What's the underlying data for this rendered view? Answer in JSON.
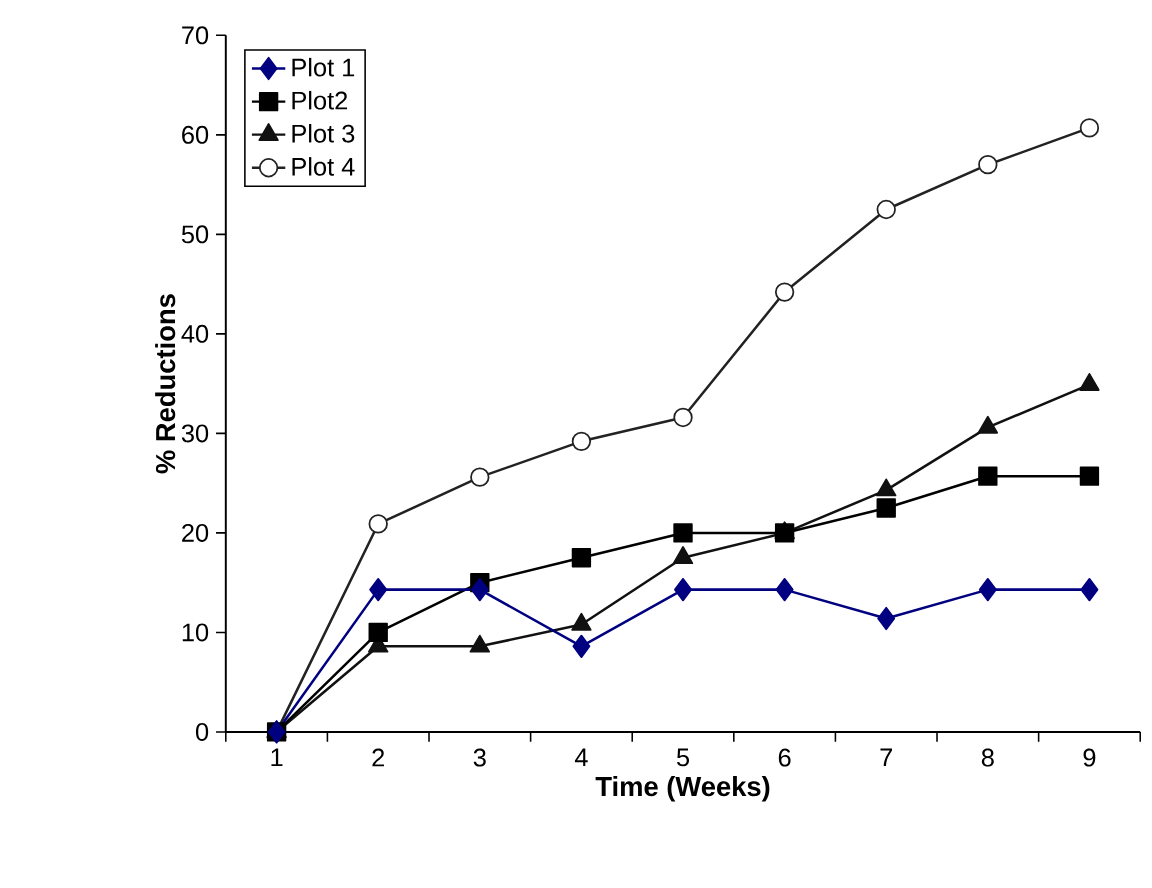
{
  "chart_data": {
    "type": "line",
    "xlabel": "Time (Weeks)",
    "ylabel": "% Reductions",
    "categories": [
      "1",
      "2",
      "3",
      "4",
      "5",
      "6",
      "7",
      "8",
      "9"
    ],
    "series": [
      {
        "name": "Plot 1",
        "color": "#000080",
        "marker": "diamond",
        "values": [
          0,
          14.3,
          14.3,
          8.6,
          14.3,
          14.3,
          11.4,
          14.3,
          14.3
        ]
      },
      {
        "name": "Plot2",
        "color": "#000000",
        "marker": "square",
        "values": [
          0,
          10,
          15,
          17.5,
          20,
          20,
          22.5,
          25.7,
          25.7
        ]
      },
      {
        "name": "Plot 3",
        "color": "#111111",
        "marker": "triangle",
        "values": [
          0,
          8.6,
          8.6,
          10.8,
          17.5,
          20,
          24.3,
          30.6,
          34.9
        ]
      },
      {
        "name": "Plot 4",
        "color": "#222222",
        "marker": "circle",
        "values": [
          0,
          20.9,
          25.6,
          29.2,
          31.6,
          44.2,
          52.5,
          57,
          60.7
        ]
      }
    ],
    "ylim": [
      0,
      70
    ],
    "yticks": [
      0,
      10,
      20,
      30,
      40,
      50,
      60,
      70
    ],
    "grid": false,
    "legend": "top left",
    "line_style": "solid"
  }
}
